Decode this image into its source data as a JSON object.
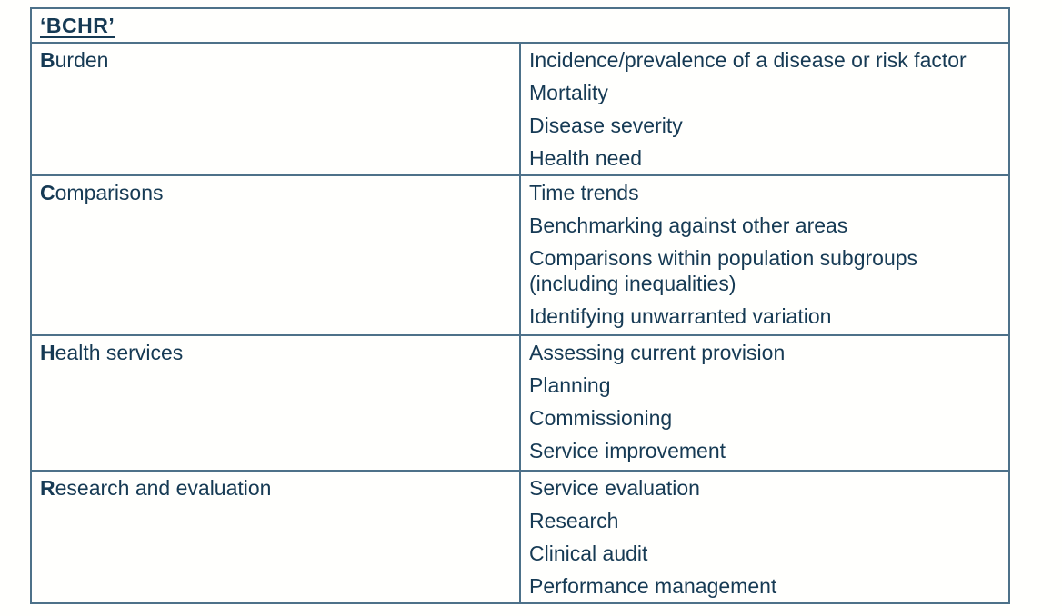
{
  "colors": {
    "text": "#163a54",
    "border": "#4d7189",
    "background": "#ffffff"
  },
  "table": {
    "header": "‘BCHR’",
    "rows": [
      {
        "initial": "B",
        "rest": "urden",
        "items": [
          "Incidence/prevalence of a disease or risk factor",
          "Mortality",
          "Disease severity",
          "Health need"
        ]
      },
      {
        "initial": "C",
        "rest": "omparisons",
        "items": [
          "Time trends",
          "Benchmarking against other areas",
          "Comparisons within population subgroups (including inequalities)",
          "Identifying unwarranted variation"
        ]
      },
      {
        "initial": "H",
        "rest": "ealth services",
        "items": [
          "Assessing current provision",
          "Planning",
          "Commissioning",
          "Service improvement"
        ]
      },
      {
        "initial": "R",
        "rest": "esearch and evaluation",
        "items": [
          "Service evaluation",
          "Research",
          "Clinical audit",
          "Performance management"
        ]
      }
    ]
  }
}
